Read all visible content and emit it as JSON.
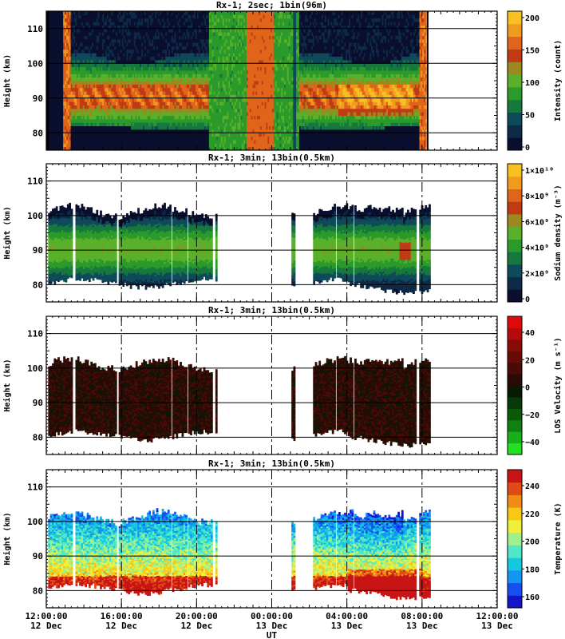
{
  "chart_data": [
    {
      "type": "heatmap",
      "title": "Rx-1;  2sec; 1bin(96m)",
      "ylabel": "Height (km)",
      "ylim": [
        75,
        115
      ],
      "yticks": [
        80,
        90,
        100,
        110
      ],
      "colorbar": {
        "label": "Intensity (count)",
        "ticks": [
          "0",
          "50",
          "100",
          "150",
          "200"
        ],
        "range": [
          0,
          200
        ]
      },
      "colors": [
        "#0a0f2e",
        "#0d2a48",
        "#0f4a5a",
        "#16783c",
        "#2a9a2a",
        "#5ab02a",
        "#9a8a1e",
        "#c03a14",
        "#e0641a",
        "#f09a1e",
        "#f8c020"
      ],
      "data_gaps": [
        [
          "12 Dec 12:00",
          "12 Dec 12:55"
        ],
        [
          "13 Dec 08:05",
          "13 Dec 12:00"
        ]
      ],
      "layer_peak_km": 90
    },
    {
      "type": "heatmap",
      "title": "Rx-1; 3min; 13bin(0.5km)",
      "ylabel": "Height (km)",
      "ylim": [
        75,
        115
      ],
      "yticks": [
        80,
        90,
        100,
        110
      ],
      "colorbar": {
        "label": "Sodium density (m⁻³)",
        "ticks": [
          "0",
          "2×10⁹",
          "4×10⁹",
          "6×10⁹",
          "8×10⁹",
          "1×10¹⁰"
        ],
        "range": [
          0,
          10000000000
        ]
      },
      "colors": [
        "#0a0f2e",
        "#0d2a48",
        "#0f4a5a",
        "#16783c",
        "#2a9a2a",
        "#5ab02a",
        "#9a8a1e",
        "#c03a14",
        "#e0641a",
        "#f09a1e",
        "#f8c020"
      ],
      "observation_windows": [
        [
          "12 Dec 12:00",
          "12 Dec 20:30"
        ],
        [
          "13 Dec 01:05",
          "13 Dec 01:15"
        ],
        [
          "13 Dec 02:10",
          "13 Dec 08:45"
        ]
      ]
    },
    {
      "type": "heatmap",
      "title": "Rx-1; 3min; 13bin(0.5km)",
      "ylabel": "Height (km)",
      "ylim": [
        75,
        115
      ],
      "yticks": [
        80,
        90,
        100,
        110
      ],
      "colorbar": {
        "label": "LOS Velocity (m s⁻¹)",
        "ticks": [
          "−40",
          "−20",
          "0",
          "20",
          "40"
        ],
        "range": [
          -50,
          50
        ]
      },
      "colors": [
        "#20e020",
        "#18b018",
        "#108010",
        "#0a5a0a",
        "#063a06",
        "#081a04",
        "#2a0a04",
        "#4a0a06",
        "#6a0a06",
        "#8a0a08",
        "#b40a0a",
        "#e00a0a"
      ]
    },
    {
      "type": "heatmap",
      "title": "Rx-1; 3min; 13bin(0.5km)",
      "ylabel": "Height (km)",
      "ylim": [
        75,
        115
      ],
      "yticks": [
        80,
        90,
        100,
        110
      ],
      "colorbar": {
        "label": "Temperature (K)",
        "ticks": [
          "160",
          "180",
          "200",
          "220",
          "240"
        ],
        "range": [
          150,
          250
        ]
      },
      "colors": [
        "#1414c8",
        "#1450f0",
        "#1496f0",
        "#14c8e0",
        "#50e8c8",
        "#a0f08c",
        "#f0f03c",
        "#f8c814",
        "#f08c14",
        "#e04a14",
        "#c81414"
      ]
    }
  ],
  "x_axis": {
    "label": "UT",
    "ticks": [
      {
        "time": "12:00:00",
        "date": "12 Dec"
      },
      {
        "time": "16:00:00",
        "date": "12 Dec"
      },
      {
        "time": "20:00:00",
        "date": "12 Dec"
      },
      {
        "time": "00:00:00",
        "date": "13 Dec"
      },
      {
        "time": "04:00:00",
        "date": "13 Dec"
      },
      {
        "time": "08:00:00",
        "date": "13 Dec"
      },
      {
        "time": "12:00:00",
        "date": "13 Dec"
      }
    ]
  }
}
